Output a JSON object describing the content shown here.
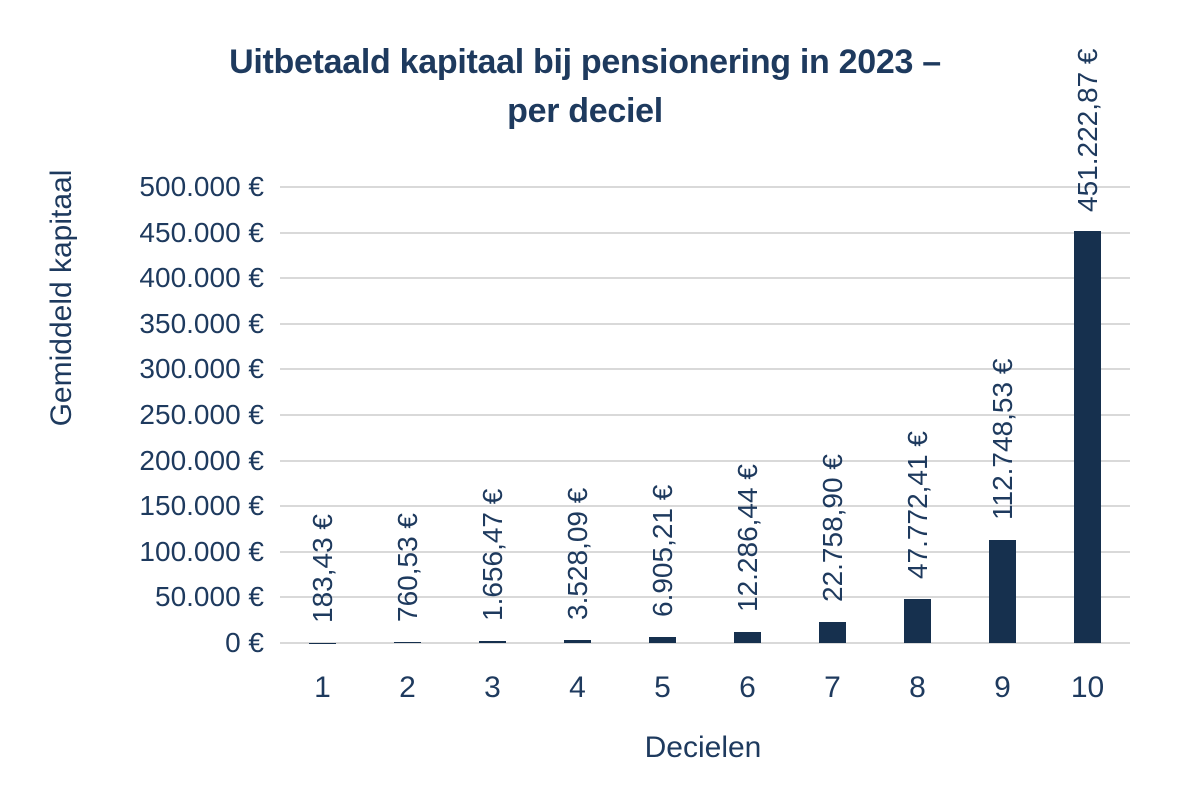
{
  "chart_data": {
    "type": "bar",
    "title": "Uitbetaald kapitaal bij pensionering in 2023 – per deciel",
    "title_lines": [
      "Uitbetaald kapitaal bij pensionering in 2023 –",
      "per deciel"
    ],
    "xlabel": "Decielen",
    "ylabel": "Gemiddeld kapitaal",
    "categories": [
      "1",
      "2",
      "3",
      "4",
      "5",
      "6",
      "7",
      "8",
      "9",
      "10"
    ],
    "values": [
      183.43,
      760.53,
      1656.47,
      3528.09,
      6905.21,
      12286.44,
      22758.9,
      47772.41,
      112748.53,
      451222.87
    ],
    "data_labels": [
      "183,43 €",
      "760,53 €",
      "1.656,47 €",
      "3.528,09 €",
      "6.905,21 €",
      "12.286,44 €",
      "22.758,90 €",
      "47.772,41 €",
      "112.748,53 €",
      "451.222,87 €"
    ],
    "ylim": [
      0,
      500000
    ],
    "y_tick_step": 50000,
    "y_tick_labels": [
      "0 €",
      "50.000 €",
      "100.000 €",
      "150.000 €",
      "200.000 €",
      "250.000 €",
      "300.000 €",
      "350.000 €",
      "400.000 €",
      "450.000 €",
      "500.000 €"
    ],
    "grid": true,
    "legend_position": "none",
    "colors": {
      "bar": "#16304e",
      "text": "#1e3a5e",
      "gridline": "#d9d9d9",
      "background": "#ffffff"
    }
  }
}
